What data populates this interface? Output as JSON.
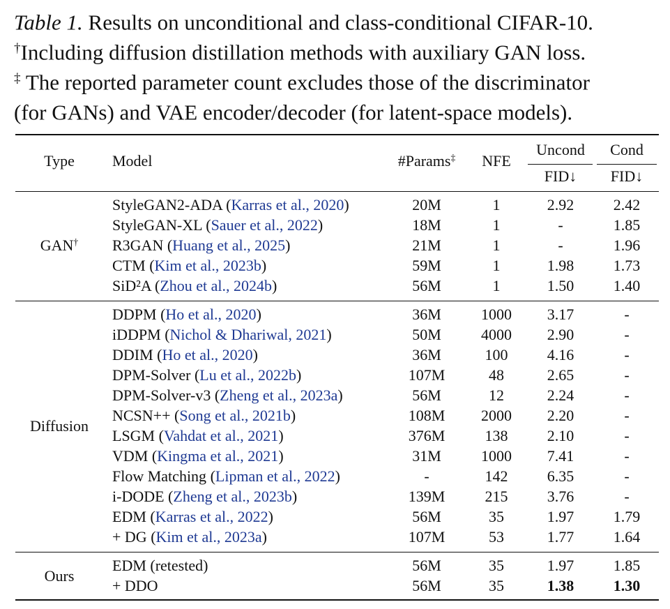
{
  "caption": {
    "label": "Table 1.",
    "text": "Results on unconditional and class-conditional CIFAR-10.",
    "notes": [
      {
        "mark": "†",
        "lines": [
          "Including diffusion distillation methods with auxiliary GAN loss."
        ]
      },
      {
        "mark": "‡",
        "lines": [
          "The reported parameter count excludes those of the discriminator",
          "(for GANs) and VAE encoder/decoder (for latent-space models)."
        ]
      }
    ]
  },
  "header": {
    "type": "Type",
    "model": "Model",
    "params": "#Params",
    "params_mark": "‡",
    "nfe": "NFE",
    "uncond": "Uncond",
    "cond": "Cond",
    "metric": "FID↓"
  },
  "groups": [
    {
      "label": "GAN",
      "mark": "†",
      "rows": [
        {
          "model": "StyleGAN2-ADA",
          "citation": "(Karras et al., 2020)",
          "params": "20M",
          "nfe": "1",
          "uncond": "2.92",
          "cond": "2.42"
        },
        {
          "model": "StyleGAN-XL",
          "citation": "(Sauer et al., 2022)",
          "params": "18M",
          "nfe": "1",
          "uncond": "-",
          "cond": "1.85"
        },
        {
          "model": "R3GAN",
          "citation": "(Huang et al., 2025)",
          "params": "21M",
          "nfe": "1",
          "uncond": "-",
          "cond": "1.96"
        },
        {
          "model": "CTM",
          "citation": "(Kim et al., 2023b)",
          "params": "59M",
          "nfe": "1",
          "uncond": "1.98",
          "cond": "1.73"
        },
        {
          "model": "SiD²A",
          "citation": "(Zhou et al., 2024b)",
          "params": "56M",
          "nfe": "1",
          "uncond": "1.50",
          "cond": "1.40"
        }
      ]
    },
    {
      "label": "Diffusion",
      "rows": [
        {
          "model": "DDPM",
          "citation": "(Ho et al., 2020)",
          "params": "36M",
          "nfe": "1000",
          "uncond": "3.17",
          "cond": "-"
        },
        {
          "model": "iDDPM",
          "citation": "(Nichol & Dhariwal, 2021)",
          "params": "50M",
          "nfe": "4000",
          "uncond": "2.90",
          "cond": "-"
        },
        {
          "model": "DDIM",
          "citation": "(Ho et al., 2020)",
          "params": "36M",
          "nfe": "100",
          "uncond": "4.16",
          "cond": "-"
        },
        {
          "model": "DPM-Solver",
          "citation": "(Lu et al., 2022b)",
          "params": "107M",
          "nfe": "48",
          "uncond": "2.65",
          "cond": "-"
        },
        {
          "model": "DPM-Solver-v3",
          "citation": "(Zheng et al., 2023a)",
          "params": "56M",
          "nfe": "12",
          "uncond": "2.24",
          "cond": "-"
        },
        {
          "model": "NCSN++",
          "citation": "(Song et al., 2021b)",
          "params": "108M",
          "nfe": "2000",
          "uncond": "2.20",
          "cond": "-"
        },
        {
          "model": "LSGM",
          "citation": "(Vahdat et al., 2021)",
          "params": "376M",
          "nfe": "138",
          "uncond": "2.10",
          "cond": "-"
        },
        {
          "model": "VDM",
          "citation": "(Kingma et al., 2021)",
          "params": "31M",
          "nfe": "1000",
          "uncond": "7.41",
          "cond": "-"
        },
        {
          "model": "Flow Matching",
          "citation": "(Lipman et al., 2022)",
          "params": "-",
          "nfe": "142",
          "uncond": "6.35",
          "cond": "-"
        },
        {
          "model": "i-DODE",
          "citation": "(Zheng et al., 2023b)",
          "params": "139M",
          "nfe": "215",
          "uncond": "3.76",
          "cond": "-"
        },
        {
          "model": "EDM",
          "citation": "(Karras et al., 2022)",
          "params": "56M",
          "nfe": "35",
          "uncond": "1.97",
          "cond": "1.79"
        },
        {
          "model": "+ DG",
          "citation": "(Kim et al., 2023a)",
          "params": "107M",
          "nfe": "53",
          "uncond": "1.77",
          "cond": "1.64"
        }
      ]
    },
    {
      "label": "Ours",
      "rows": [
        {
          "model": "EDM (retested)",
          "params": "56M",
          "nfe": "35",
          "uncond": "1.97",
          "cond": "1.85"
        },
        {
          "model": "+ DDO",
          "params": "56M",
          "nfe": "35",
          "uncond": "1.38",
          "cond": "1.30",
          "best": true
        }
      ]
    }
  ]
}
